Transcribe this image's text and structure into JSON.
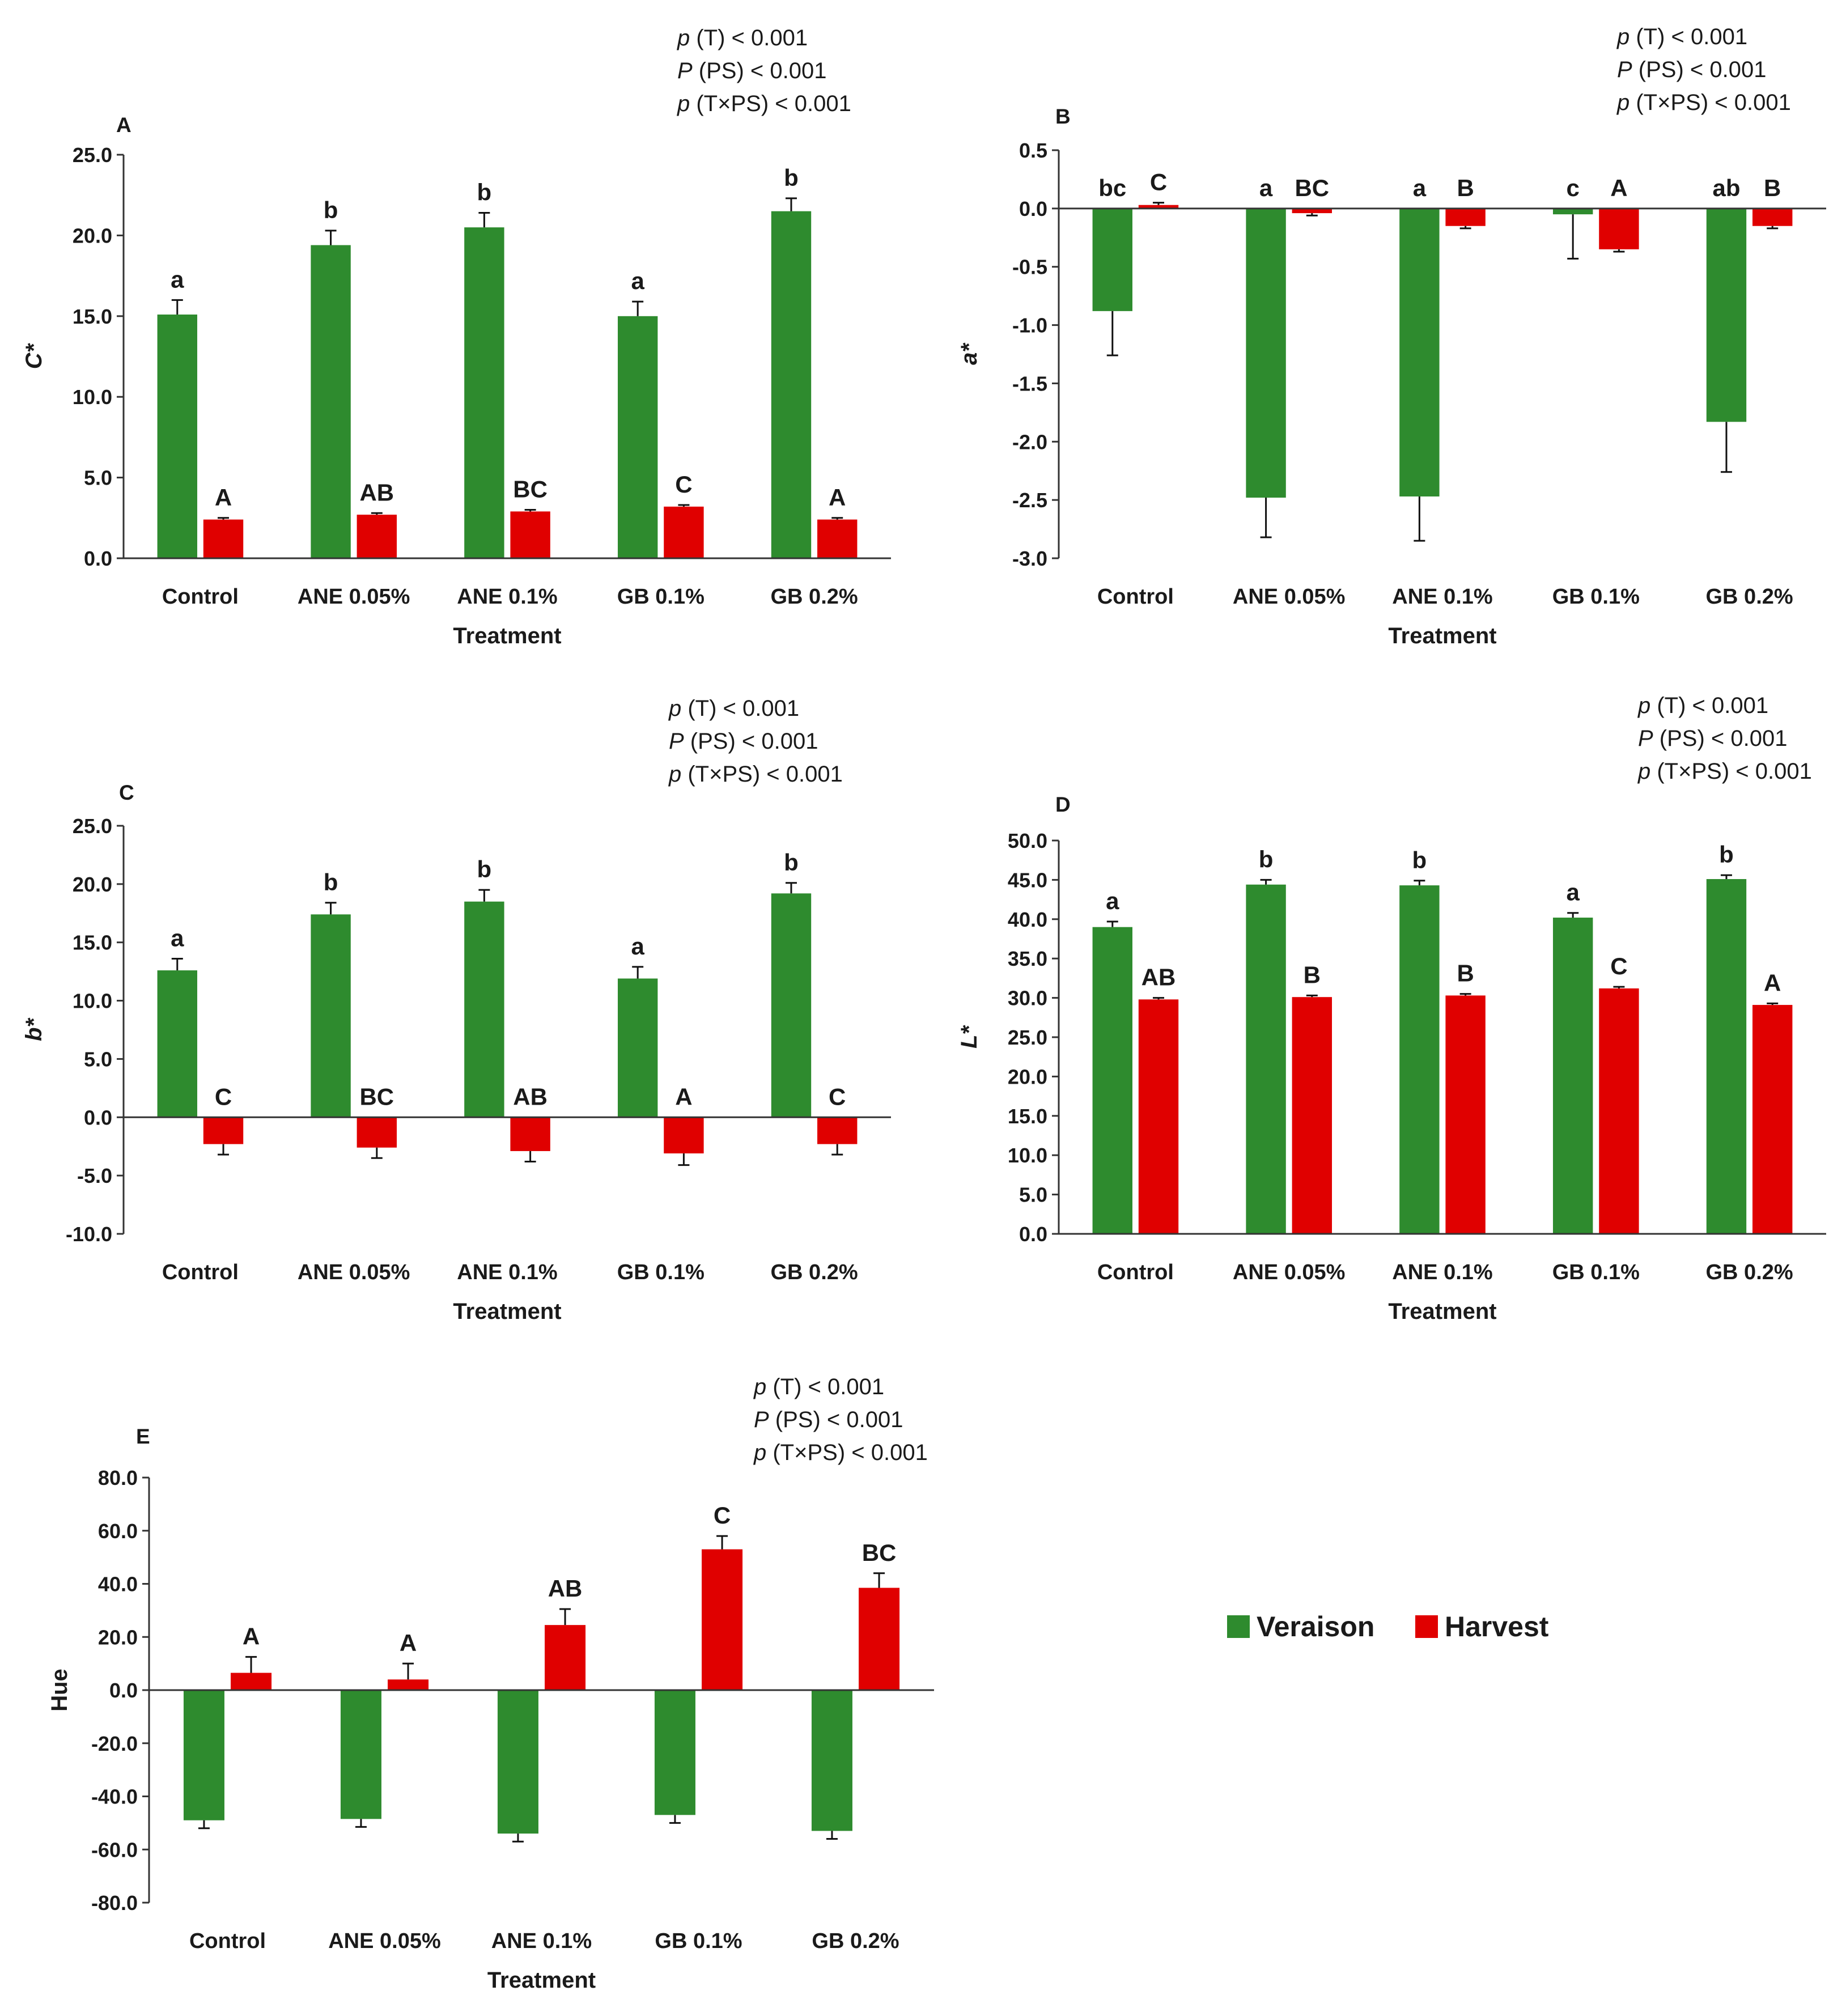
{
  "colors": {
    "veraison": "#2e8b2e",
    "harvest": "#e00000",
    "axis": "#333333"
  },
  "legend": [
    {
      "name": "Veraison",
      "color": "#2e8b2e"
    },
    {
      "name": "Harvest",
      "color": "#e00000"
    }
  ],
  "chart_data": [
    {
      "panel": "A",
      "type": "bar",
      "ylabel": "C*",
      "ylabel_italic": true,
      "xlabel": "Treatment",
      "categories": [
        "Control",
        "ANE 0.05%",
        "ANE 0.1%",
        "GB 0.1%",
        "GB 0.2%"
      ],
      "ylim": [
        0,
        25
      ],
      "ystep": 5,
      "decimals": 1,
      "series": [
        {
          "name": "Veraison",
          "values": [
            15.1,
            19.4,
            20.5,
            15.0,
            21.5
          ],
          "err": [
            0.9,
            0.9,
            0.9,
            0.9,
            0.8
          ],
          "letters": [
            "a",
            "b",
            "b",
            "a",
            "b"
          ]
        },
        {
          "name": "Harvest",
          "values": [
            2.4,
            2.7,
            2.9,
            3.2,
            2.4
          ],
          "err": [
            0.1,
            0.1,
            0.1,
            0.1,
            0.1
          ],
          "letters": [
            "A",
            "AB",
            "BC",
            "C",
            "A"
          ]
        }
      ],
      "stats": [
        {
          "p": "p",
          "term": "(T) < 0.001"
        },
        {
          "p": "P",
          "term": "(PS) < 0.001"
        },
        {
          "p": "p",
          "term": "(T×PS) < 0.001"
        }
      ]
    },
    {
      "panel": "B",
      "type": "bar",
      "ylabel": "a*",
      "ylabel_italic": true,
      "xlabel": "Treatment",
      "categories": [
        "Control",
        "ANE 0.05%",
        "ANE 0.1%",
        "GB 0.1%",
        "GB 0.2%"
      ],
      "ylim": [
        -3.0,
        0.5
      ],
      "ystep": 0.5,
      "decimals": 1,
      "series": [
        {
          "name": "Veraison",
          "values": [
            -0.88,
            -2.48,
            -2.47,
            -0.05,
            -1.83
          ],
          "err": [
            0.38,
            0.34,
            0.38,
            0.38,
            0.43
          ],
          "letters": [
            "bc",
            "a",
            "a",
            "c",
            "ab"
          ]
        },
        {
          "name": "Harvest",
          "values": [
            0.03,
            -0.04,
            -0.15,
            -0.35,
            -0.15
          ],
          "err": [
            0.02,
            0.02,
            0.02,
            0.02,
            0.02
          ],
          "letters": [
            "C",
            "BC",
            "B",
            "A",
            "B"
          ]
        }
      ],
      "stats": [
        {
          "p": "p",
          "term": "(T) < 0.001"
        },
        {
          "p": "P",
          "term": "(PS) < 0.001"
        },
        {
          "p": "p",
          "term": "(T×PS) < 0.001"
        }
      ]
    },
    {
      "panel": "C",
      "type": "bar",
      "ylabel": "b*",
      "ylabel_italic": true,
      "xlabel": "Treatment",
      "categories": [
        "Control",
        "ANE 0.05%",
        "ANE 0.1%",
        "GB 0.1%",
        "GB 0.2%"
      ],
      "ylim": [
        -10,
        25
      ],
      "ystep": 5,
      "decimals": 1,
      "series": [
        {
          "name": "Veraison",
          "values": [
            12.6,
            17.4,
            18.5,
            11.9,
            19.2
          ],
          "err": [
            1.0,
            1.0,
            1.0,
            1.0,
            0.9
          ],
          "letters": [
            "a",
            "b",
            "b",
            "a",
            "b"
          ]
        },
        {
          "name": "Harvest",
          "values": [
            -2.3,
            -2.6,
            -2.9,
            -3.1,
            -2.3
          ],
          "err": [
            0.9,
            0.9,
            0.9,
            1.0,
            0.9
          ],
          "letters": [
            "C",
            "BC",
            "AB",
            "A",
            "C"
          ]
        }
      ],
      "stats": [
        {
          "p": "p",
          "term": "(T) < 0.001"
        },
        {
          "p": "P",
          "term": "(PS) < 0.001"
        },
        {
          "p": "p",
          "term": "(T×PS) < 0.001"
        }
      ]
    },
    {
      "panel": "D",
      "type": "bar",
      "ylabel": "L*",
      "ylabel_italic": true,
      "xlabel": "Treatment",
      "categories": [
        "Control",
        "ANE 0.05%",
        "ANE 0.1%",
        "GB 0.1%",
        "GB 0.2%"
      ],
      "ylim": [
        0,
        50
      ],
      "ystep": 5,
      "decimals": 1,
      "series": [
        {
          "name": "Veraison",
          "values": [
            39.0,
            44.4,
            44.3,
            40.2,
            45.1
          ],
          "err": [
            0.7,
            0.6,
            0.6,
            0.6,
            0.5
          ],
          "letters": [
            "a",
            "b",
            "b",
            "a",
            "b"
          ]
        },
        {
          "name": "Harvest",
          "values": [
            29.8,
            30.1,
            30.3,
            31.2,
            29.1
          ],
          "err": [
            0.2,
            0.2,
            0.2,
            0.2,
            0.2
          ],
          "letters": [
            "AB",
            "B",
            "B",
            "C",
            "A"
          ]
        }
      ],
      "stats": [
        {
          "p": "p",
          "term": "(T) < 0.001"
        },
        {
          "p": "P",
          "term": "(PS) < 0.001"
        },
        {
          "p": "p",
          "term": "(T×PS) < 0.001"
        }
      ]
    },
    {
      "panel": "E",
      "type": "bar",
      "ylabel": "Hue",
      "ylabel_italic": false,
      "xlabel": "Treatment",
      "categories": [
        "Control",
        "ANE 0.05%",
        "ANE 0.1%",
        "GB 0.1%",
        "GB 0.2%"
      ],
      "ylim": [
        -80,
        80
      ],
      "ystep": 20,
      "decimals": 1,
      "series": [
        {
          "name": "Veraison",
          "values": [
            -49,
            -48.5,
            -54,
            -47,
            -53
          ],
          "err": [
            3,
            3,
            3,
            3,
            3
          ],
          "letters": [
            "",
            "",
            "",
            "",
            ""
          ]
        },
        {
          "name": "Harvest",
          "values": [
            6.5,
            4,
            24.5,
            53,
            38.5
          ],
          "err": [
            6,
            6,
            6,
            5,
            5.5
          ],
          "letters": [
            "A",
            "A",
            "AB",
            "C",
            "BC"
          ]
        }
      ],
      "stats": [
        {
          "p": "p",
          "term": "(T) < 0.001"
        },
        {
          "p": "P",
          "term": "(PS) < 0.001"
        },
        {
          "p": "p",
          "term": "(T×PS) < 0.001"
        }
      ]
    }
  ]
}
